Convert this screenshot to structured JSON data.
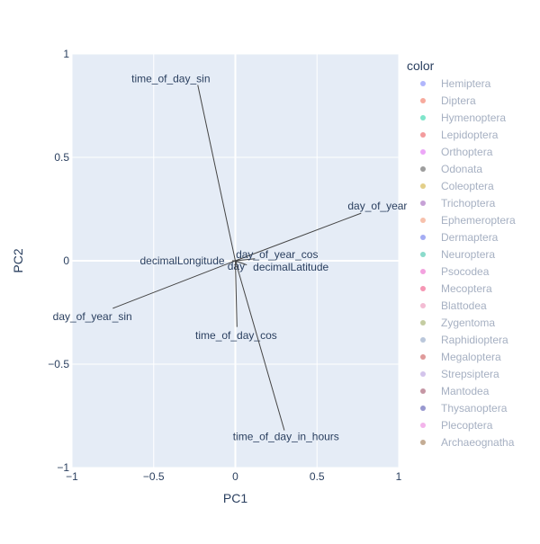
{
  "chart_data": {
    "type": "scatter",
    "subtype": "pca-biplot-loadings",
    "title": "",
    "xlabel": "PC1",
    "ylabel": "PC2",
    "xlim": [
      -1,
      1
    ],
    "ylim": [
      -1,
      1
    ],
    "x_ticks": [
      -1,
      -0.5,
      0,
      0.5,
      1
    ],
    "y_ticks": [
      -1,
      -0.5,
      0,
      0.5,
      1
    ],
    "x_tick_labels": [
      "−1",
      "−0.5",
      "0",
      "0.5",
      "1"
    ],
    "y_tick_labels": [
      "−1",
      "−0.5",
      "0",
      "0.5",
      "1"
    ],
    "grid": true,
    "plot_background": "#e5ecf6",
    "axis_text_color": "#2a3f5f",
    "line_color": "#444444",
    "loadings": [
      {
        "name": "time_of_day_sin",
        "x": -0.23,
        "y": 0.85,
        "label_x": -0.395,
        "label_y": 0.88
      },
      {
        "name": "day_of_year",
        "x": 0.77,
        "y": 0.23,
        "label_x": 0.87,
        "label_y": 0.265
      },
      {
        "name": "day_of_year_sin",
        "x": -0.75,
        "y": -0.23,
        "label_x": -0.875,
        "label_y": -0.27
      },
      {
        "name": "day_of_year_cos",
        "x": 0.12,
        "y": 0.01,
        "label_x": 0.255,
        "label_y": 0.03
      },
      {
        "name": "decimalLongitude",
        "x": -0.02,
        "y": 0.0,
        "label_x": -0.325,
        "label_y": 0.0
      },
      {
        "name": "day",
        "x": 0.01,
        "y": -0.01,
        "label_x": 0.005,
        "label_y": -0.025
      },
      {
        "name": "decimalLatitude",
        "x": 0.07,
        "y": -0.02,
        "label_x": 0.34,
        "label_y": -0.03
      },
      {
        "name": "time_of_day_cos",
        "x": 0.01,
        "y": -0.32,
        "label_x": 0.005,
        "label_y": -0.36
      },
      {
        "name": "time_of_day_in_hours",
        "x": 0.3,
        "y": -0.82,
        "label_x": 0.31,
        "label_y": -0.85
      }
    ],
    "legend": {
      "title": "color",
      "placement": "right",
      "entries": [
        {
          "name": "Hemiptera",
          "color": "#636efa"
        },
        {
          "name": "Diptera",
          "color": "#ef553b"
        },
        {
          "name": "Hymenoptera",
          "color": "#00cc96"
        },
        {
          "name": "Lepidoptera",
          "color": "#e8383b"
        },
        {
          "name": "Orthoptera",
          "color": "#d94df0"
        },
        {
          "name": "Odonata",
          "color": "#3b3b3b"
        },
        {
          "name": "Coleoptera",
          "color": "#c8a013"
        },
        {
          "name": "Trichoptera",
          "color": "#8e44ad"
        },
        {
          "name": "Ephemeroptera",
          "color": "#f0835a"
        },
        {
          "name": "Dermaptera",
          "color": "#4a5ae8"
        },
        {
          "name": "Neuroptera",
          "color": "#17b897"
        },
        {
          "name": "Psocodea",
          "color": "#e845c0"
        },
        {
          "name": "Mecoptera",
          "color": "#ee2e6a"
        },
        {
          "name": "Blattodea",
          "color": "#e87aa8"
        },
        {
          "name": "Zygentoma",
          "color": "#8a9a44"
        },
        {
          "name": "Raphidioptera",
          "color": "#7690b8"
        },
        {
          "name": "Megaloptera",
          "color": "#c03535"
        },
        {
          "name": "Strepsiptera",
          "color": "#a88ad8"
        },
        {
          "name": "Mantodea",
          "color": "#8c2d4a"
        },
        {
          "name": "Thysanoptera",
          "color": "#3232a0"
        },
        {
          "name": "Plecoptera",
          "color": "#e86ad8"
        },
        {
          "name": "Archaeognatha",
          "color": "#8a5a2a"
        }
      ]
    }
  }
}
